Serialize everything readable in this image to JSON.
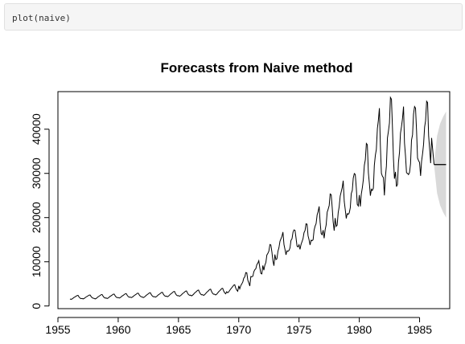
{
  "code_cell": {
    "code": "plot(naive)"
  },
  "chart_data": {
    "type": "line",
    "title": "Forecasts from Naive method",
    "xlabel": "",
    "ylabel": "",
    "xlim": [
      1955,
      1987.5
    ],
    "ylim": [
      -600,
      48500
    ],
    "x_ticks": [
      1955,
      1960,
      1965,
      1970,
      1975,
      1980,
      1985
    ],
    "y_ticks": [
      0,
      10000,
      20000,
      30000,
      40000
    ],
    "grid": false,
    "legend": "none",
    "frequency": 12,
    "series": [
      {
        "role": "observed",
        "color": "#000000",
        "start": 1956,
        "peaks": [
          {
            "year": 1956,
            "low": 1500,
            "high": 2400
          },
          {
            "year": 1957,
            "low": 1600,
            "high": 2500
          },
          {
            "year": 1958,
            "low": 1600,
            "high": 2600
          },
          {
            "year": 1959,
            "low": 1700,
            "high": 2700
          },
          {
            "year": 1960,
            "low": 1800,
            "high": 2800
          },
          {
            "year": 1961,
            "low": 1900,
            "high": 2900
          },
          {
            "year": 1962,
            "low": 1900,
            "high": 3000
          },
          {
            "year": 1963,
            "low": 2000,
            "high": 3100
          },
          {
            "year": 1964,
            "low": 2100,
            "high": 3300
          },
          {
            "year": 1965,
            "low": 2200,
            "high": 3400
          },
          {
            "year": 1966,
            "low": 2300,
            "high": 3600
          },
          {
            "year": 1967,
            "low": 2400,
            "high": 3800
          },
          {
            "year": 1968,
            "low": 2500,
            "high": 4000
          },
          {
            "year": 1969,
            "low": 3000,
            "high": 4800
          },
          {
            "year": 1970,
            "low": 4000,
            "high": 7500
          },
          {
            "year": 1971,
            "low": 6500,
            "high": 10000
          },
          {
            "year": 1972,
            "low": 8500,
            "high": 14000
          },
          {
            "year": 1973,
            "low": 10500,
            "high": 16500
          },
          {
            "year": 1974,
            "low": 12000,
            "high": 17500
          },
          {
            "year": 1975,
            "low": 13000,
            "high": 18500
          },
          {
            "year": 1976,
            "low": 14500,
            "high": 22000
          },
          {
            "year": 1977,
            "low": 16000,
            "high": 25500
          },
          {
            "year": 1978,
            "low": 18000,
            "high": 28000
          },
          {
            "year": 1979,
            "low": 20000,
            "high": 30500
          },
          {
            "year": 1980,
            "low": 23000,
            "high": 36500
          },
          {
            "year": 1981,
            "low": 25500,
            "high": 43500
          },
          {
            "year": 1982,
            "low": 26500,
            "high": 47500
          },
          {
            "year": 1983,
            "low": 27000,
            "high": 44500
          },
          {
            "year": 1984,
            "low": 28500,
            "high": 46000
          },
          {
            "year": 1985,
            "low": 30000,
            "high": 46000
          }
        ],
        "end": {
          "year": 1986.2,
          "value": 32000
        }
      },
      {
        "role": "forecast",
        "color": "#000000",
        "x": [
          1986.2,
          1987.2
        ],
        "values": [
          32000,
          32000
        ]
      }
    ],
    "bands": [
      {
        "role": "prediction-interval",
        "color": "#d9d9d9",
        "x": [
          1986.2,
          1986.45,
          1986.7,
          1986.95,
          1987.2
        ],
        "lower": [
          32000,
          25500,
          22800,
          21200,
          20000
        ],
        "upper": [
          32000,
          38500,
          41200,
          42800,
          44000
        ]
      }
    ]
  }
}
